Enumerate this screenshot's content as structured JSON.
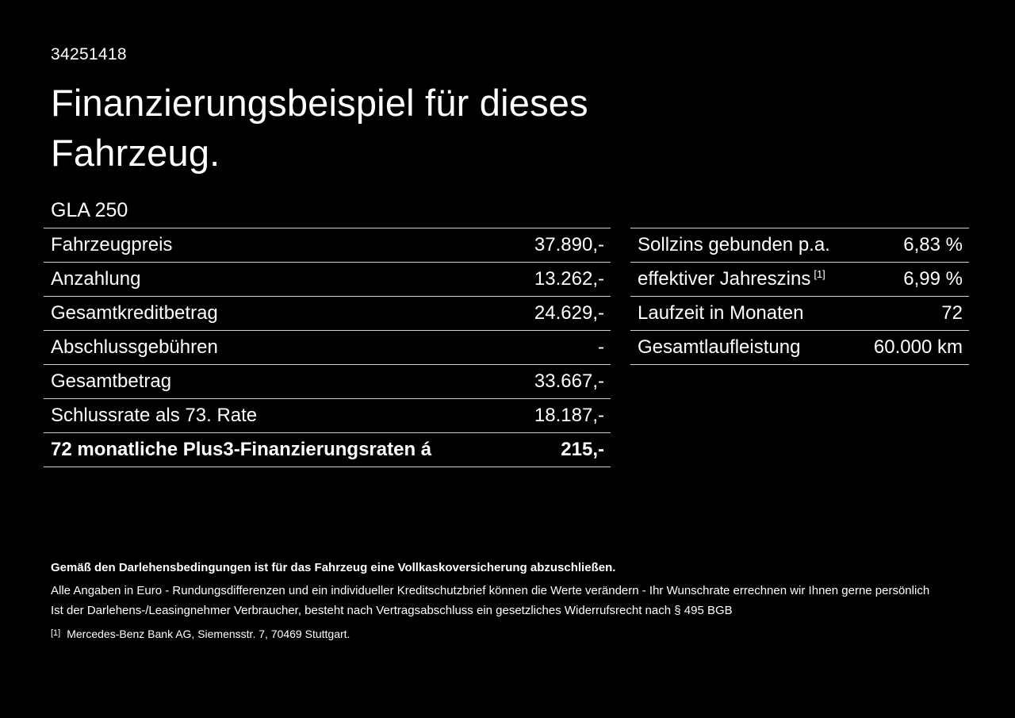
{
  "document": {
    "id": "34251418",
    "title_line1": "Finanzierungsbeispiel für dieses",
    "title_line2": "Fahrzeug.",
    "model": "GLA 250"
  },
  "financing_table": {
    "rows": [
      {
        "label": "Fahrzeugpreis",
        "value": "37.890,-"
      },
      {
        "label": "Anzahlung",
        "value": "13.262,-"
      },
      {
        "label": "Gesamtkreditbetrag",
        "value": "24.629,-"
      },
      {
        "label": "Abschlussgebühren",
        "value": "-"
      },
      {
        "label": "Gesamtbetrag",
        "value": "33.667,-"
      },
      {
        "label": "Schlussrate als 73. Rate",
        "value": "18.187,-"
      },
      {
        "label": "72 monatliche Plus3-Finanzierungsraten á",
        "value": "215,-"
      }
    ]
  },
  "conditions_table": {
    "rows": [
      {
        "label": "Sollzins gebunden p.a.",
        "value": "6,83 %"
      },
      {
        "label": "effektiver Jahreszins",
        "sup": "[1]",
        "value": "6,99 %"
      },
      {
        "label": "Laufzeit in Monaten",
        "value": "72"
      },
      {
        "label": "Gesamtlaufleistung",
        "value": "60.000 km"
      }
    ]
  },
  "footnotes": {
    "insurance_note": "Gemäß den Darlehensbedingungen ist für das Fahrzeug eine Vollkaskoversicherung abzuschließen.",
    "disclaimer1": "Alle Angaben in Euro - Rundungsdifferenzen und ein individueller Kreditschutzbrief können die Werte verändern - Ihr Wunschrate errechnen wir Ihnen gerne persönlich",
    "disclaimer2": "Ist der Darlehens-/Leasingnehmer Verbraucher, besteht nach Vertragsabschluss ein gesetzliches Widerrufsrecht nach § 495 BGB",
    "reference_marker": "[1]",
    "reference_text": "Mercedes-Benz Bank AG, Siemensstr. 7, 70469 Stuttgart."
  },
  "colors": {
    "background": "#000000",
    "text": "#ffffff",
    "divider": "#d0d0d0"
  }
}
